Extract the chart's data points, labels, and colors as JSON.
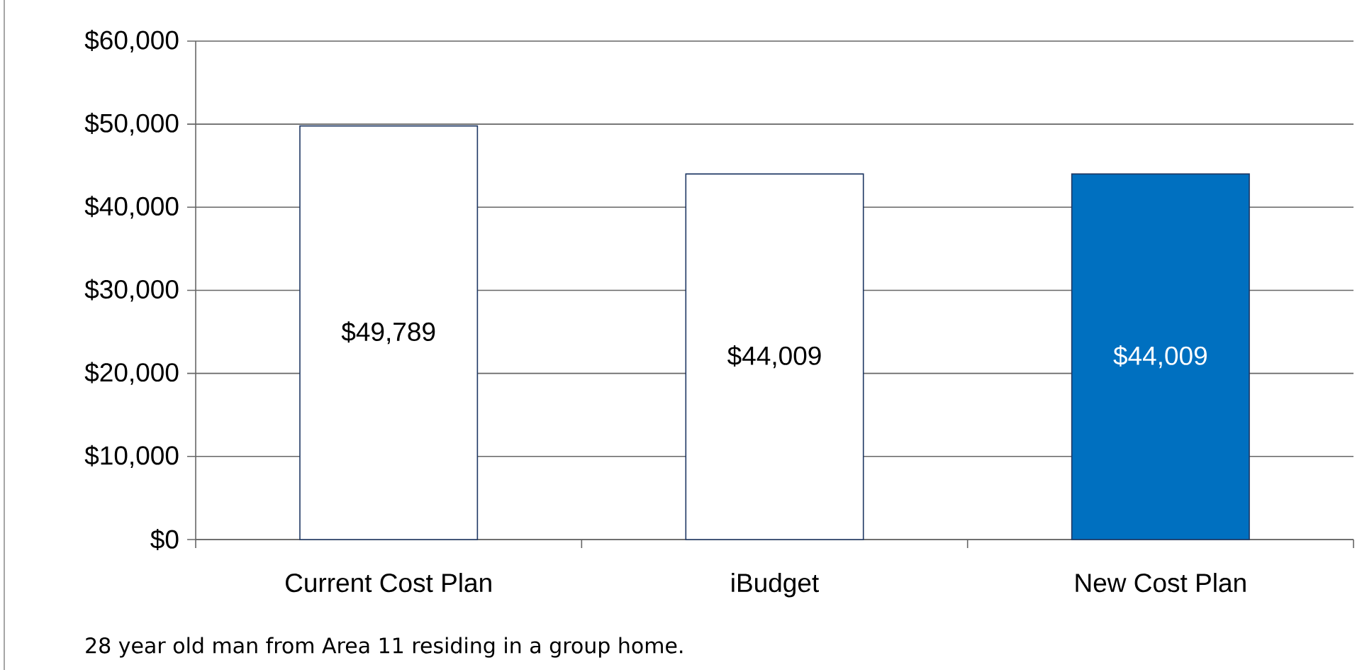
{
  "chart_data": {
    "type": "bar",
    "categories": [
      "Current Cost Plan",
      "iBudget",
      "New Cost Plan"
    ],
    "values": [
      49789,
      44009,
      44009
    ],
    "colors": [
      "#ffffff",
      "#ffffff",
      "#0070c0"
    ],
    "value_labels": [
      "$49,789",
      "$44,009",
      "$44,009"
    ],
    "ylim": [
      0,
      60000
    ],
    "yticks": [
      {
        "value": 0,
        "label": "$0"
      },
      {
        "value": 10000,
        "label": "$10,000"
      },
      {
        "value": 20000,
        "label": "$20,000"
      },
      {
        "value": 30000,
        "label": "$30,000"
      },
      {
        "value": 40000,
        "label": "$40,000"
      },
      {
        "value": 50000,
        "label": "$50,000"
      },
      {
        "value": 60000,
        "label": "$60,000"
      }
    ],
    "grid": "y",
    "annotations": [
      "28 year old man from Area 11 residing in a group home."
    ]
  }
}
